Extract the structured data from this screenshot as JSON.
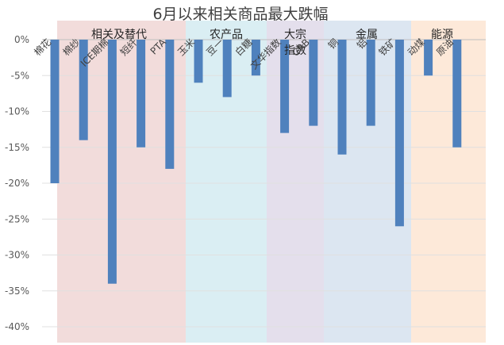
{
  "chart_data": {
    "type": "bar",
    "title": "6月以来相关商品最大跌幅",
    "xlabel": "",
    "ylabel": "",
    "ylim": [
      -0.4,
      0.0
    ],
    "y_ticks": [
      "0%",
      "-5%",
      "-10%",
      "-15%",
      "-20%",
      "-25%",
      "-30%",
      "-35%",
      "-40%"
    ],
    "categories": [
      "棉花",
      "棉纱",
      "ICE期棉",
      "短纤",
      "PTA",
      "玉米",
      "豆一",
      "白糖",
      "文华指数",
      "CRB",
      "铜",
      "铝",
      "铁矿",
      "动煤",
      "原油"
    ],
    "values": [
      -0.2,
      -0.14,
      -0.34,
      -0.15,
      -0.18,
      -0.06,
      -0.08,
      -0.05,
      -0.13,
      -0.12,
      -0.16,
      -0.12,
      -0.26,
      -0.05,
      -0.15
    ],
    "groups": [
      {
        "name": "相关及替代",
        "members": [
          "棉花",
          "棉纱",
          "ICE期棉",
          "短纤",
          "PTA"
        ],
        "color": "#f2dcdb"
      },
      {
        "name": "农产品",
        "members": [
          "玉米",
          "豆一",
          "白糖"
        ],
        "color": "#daeef3"
      },
      {
        "name": "大宗指数",
        "members": [
          "文华指数",
          "CRB"
        ],
        "color": "#e4dfec"
      },
      {
        "name": "金属",
        "members": [
          "铜",
          "铝",
          "铁矿"
        ],
        "color": "#dce6f1"
      },
      {
        "name": "能源",
        "members": [
          "动煤",
          "原油"
        ],
        "color": "#fde9d9"
      }
    ],
    "bar_color": "#4f81bd",
    "grid": true
  }
}
